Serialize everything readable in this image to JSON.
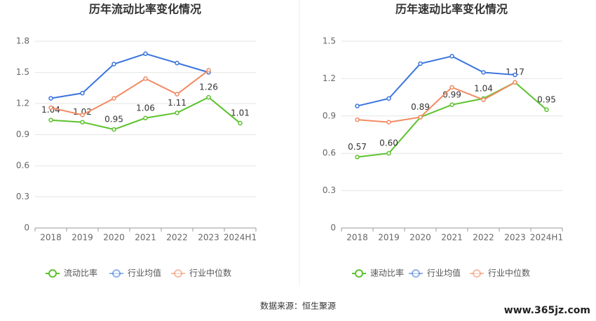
{
  "chart_data": [
    {
      "type": "line",
      "title": "历年流动比率变化情况",
      "categories": [
        "2018",
        "2019",
        "2020",
        "2021",
        "2022",
        "2023",
        "2024H1"
      ],
      "ylim": [
        0,
        1.8
      ],
      "yticks": [
        0,
        0.3,
        0.6,
        0.9,
        1.2,
        1.5,
        1.8
      ],
      "grid": true,
      "series": [
        {
          "name": "流动比率",
          "color": "#5cc22c",
          "values": [
            1.04,
            1.02,
            0.95,
            1.06,
            1.11,
            1.26,
            1.01
          ]
        },
        {
          "name": "行业均值",
          "color": "#3a75de",
          "values": [
            1.25,
            1.3,
            1.58,
            1.68,
            1.59,
            1.5,
            null
          ]
        },
        {
          "name": "行业中位数",
          "color": "#f28a62",
          "values": [
            1.16,
            1.09,
            1.25,
            1.44,
            1.29,
            1.52,
            null
          ]
        }
      ]
    },
    {
      "type": "line",
      "title": "历年速动比率变化情况",
      "categories": [
        "2018",
        "2019",
        "2020",
        "2021",
        "2022",
        "2023",
        "2024H1"
      ],
      "ylim": [
        0,
        1.5
      ],
      "yticks": [
        0,
        0.3,
        0.6,
        0.9,
        1.2,
        1.5
      ],
      "grid": true,
      "series": [
        {
          "name": "速动比率",
          "color": "#5cc22c",
          "values": [
            0.57,
            0.6,
            0.89,
            0.99,
            1.04,
            1.17,
            0.95
          ],
          "value_labels": [
            "0.57",
            "0.60",
            "0.89",
            "0.99",
            "1.04",
            "1.17",
            "0.95"
          ]
        },
        {
          "name": "行业均值",
          "color": "#3a75de",
          "values": [
            0.98,
            1.04,
            1.32,
            1.38,
            1.25,
            1.23,
            null
          ]
        },
        {
          "name": "行业中位数",
          "color": "#f28a62",
          "values": [
            0.87,
            0.85,
            0.89,
            1.13,
            1.03,
            1.17,
            null
          ]
        }
      ]
    }
  ],
  "source": "数据来源：恒生聚源",
  "watermark": "www.365jz.com"
}
